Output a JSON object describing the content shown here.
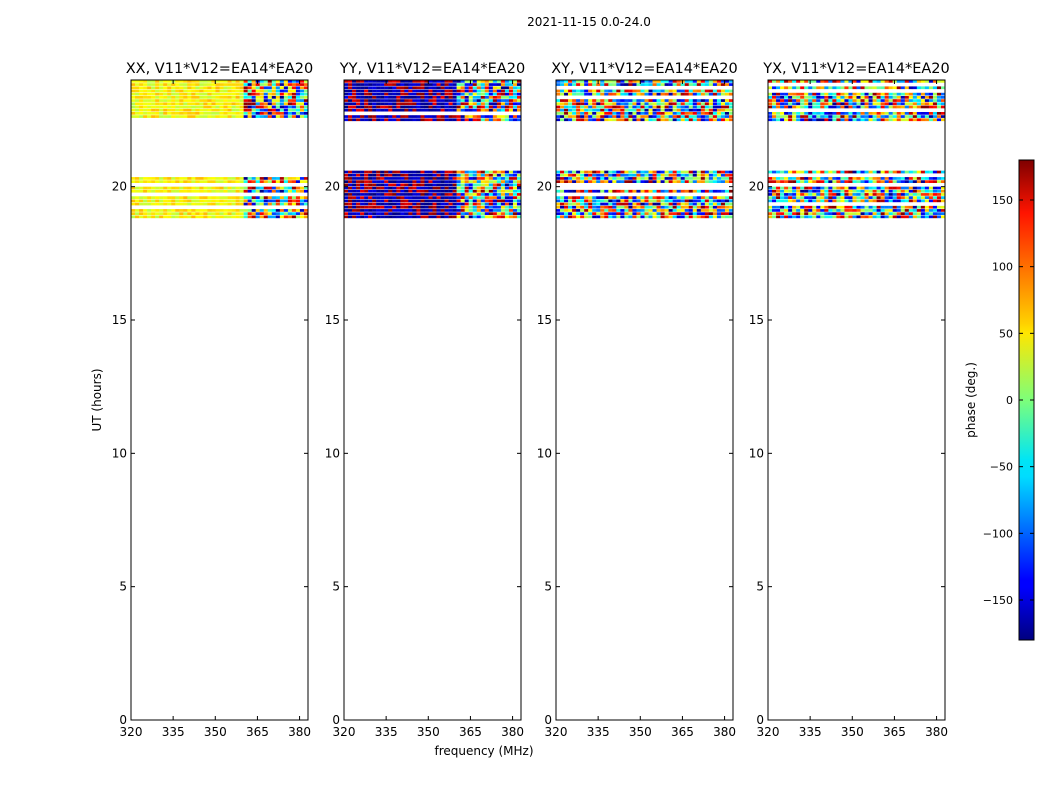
{
  "figure_title": "2021-11-15 0.0-24.0",
  "chart_data": {
    "type": "heatmap",
    "suptitle": "2021-11-15 0.0-24.0",
    "xlabel": "frequency (MHz)",
    "ylabel": "UT (hours)",
    "xlim": [
      320,
      383
    ],
    "ylim": [
      0,
      24
    ],
    "xticks": [
      320,
      335,
      350,
      365,
      380
    ],
    "yticks": [
      0,
      5,
      10,
      15,
      20
    ],
    "data_time_ranges": [
      [
        18.8,
        20.6
      ],
      [
        22.4,
        24.0
      ]
    ],
    "panels": [
      {
        "title": "XX, V11*V12=EA14*EA20",
        "dominant_phase": [
          20,
          70
        ],
        "noisy_from_mhz": 360
      },
      {
        "title": "YY, V11*V12=EA14*EA20",
        "dominant_phase": [
          -180,
          -140
        ],
        "alt_phase": [
          140,
          180
        ],
        "noisy_from_mhz": 360
      },
      {
        "title": "XY, V11*V12=EA14*EA20",
        "dominant_phase": [
          -180,
          180
        ],
        "noisy_from_mhz": 320
      },
      {
        "title": "YX, V11*V12=EA14*EA20",
        "dominant_phase": [
          -180,
          180
        ],
        "noisy_from_mhz": 320
      }
    ],
    "colorbar": {
      "label": "phase (deg.)",
      "range": [
        -180,
        180
      ],
      "ticks": [
        -150,
        -100,
        -50,
        0,
        50,
        100,
        150
      ],
      "tick_labels": [
        "−150",
        "−100",
        "−50",
        "0",
        "50",
        "100",
        "150"
      ],
      "colormap": "jet"
    }
  }
}
